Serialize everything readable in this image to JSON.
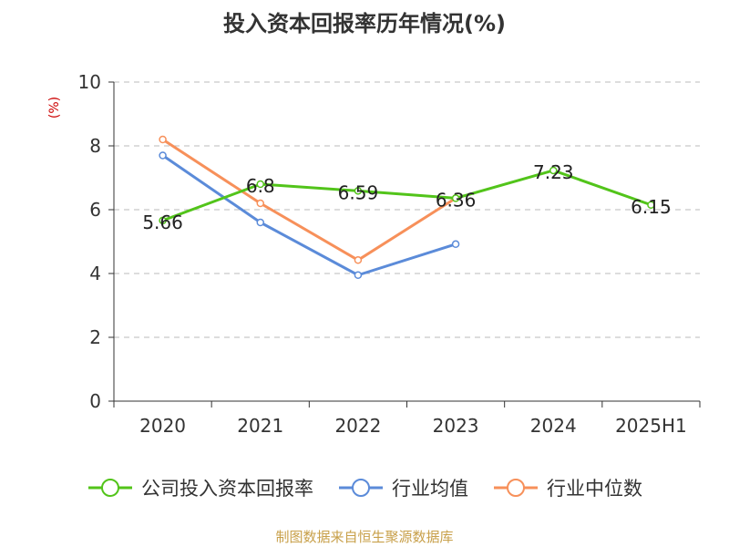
{
  "title": "投入资本回报率历年情况(%)",
  "source": "制图数据来自恒生聚源数据库",
  "chart_data": {
    "type": "line",
    "title": "投入资本回报率历年情况(%)",
    "ylabel": "(%)",
    "xlabel": "",
    "categories": [
      "2020",
      "2021",
      "2022",
      "2023",
      "2024",
      "2025H1"
    ],
    "ylim": [
      0,
      10
    ],
    "yticks": [
      0,
      2,
      4,
      6,
      8,
      10
    ],
    "grid": true,
    "legend_position": "bottom",
    "series": [
      {
        "name": "公司投入资本回报率",
        "color": "#52c41a",
        "values": [
          5.66,
          6.8,
          6.59,
          6.36,
          7.23,
          6.15
        ],
        "labels": [
          "5.66",
          "6.8",
          "6.59",
          "6.36",
          "7.23",
          "6.15"
        ]
      },
      {
        "name": "行业均值",
        "color": "#5b8bd9",
        "values": [
          7.7,
          5.6,
          3.95,
          4.92,
          null,
          null
        ]
      },
      {
        "name": "行业中位数",
        "color": "#f7905a",
        "values": [
          8.2,
          6.2,
          4.42,
          6.36,
          null,
          null
        ]
      }
    ]
  }
}
